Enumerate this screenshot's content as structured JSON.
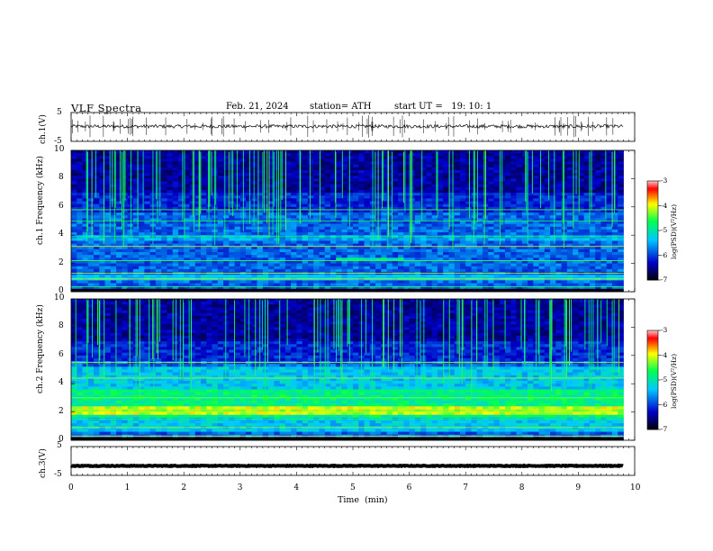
{
  "header": {
    "title": "VLF Spectra",
    "date": "Feb. 21, 2024",
    "station": "station= ATH",
    "start": "start UT =   19: 10: 1"
  },
  "colors": {
    "spectro_low": "#000000",
    "spectro_mid_low": "#0000c8",
    "spectro_mid": "#00c8ff",
    "spectro_mid_high": "#00ff50",
    "spectro_high": "#ffff00",
    "spectro_peak": "#ff0000"
  },
  "chart_data": [
    {
      "type": "line",
      "name": "ch1-waveform",
      "ylabel": "ch.1(V)",
      "yticks": [
        "5",
        "-5"
      ],
      "ylim": [
        -5,
        5
      ],
      "x_range_min": [
        0,
        9.8
      ],
      "y_approx_level": 0.2
    },
    {
      "type": "heatmap",
      "name": "ch1-spectrogram",
      "ylabel": "ch.1  Frequency (kHz)",
      "yticks": [
        "10",
        "8",
        "6",
        "4",
        "2",
        "0"
      ],
      "ylim": [
        0,
        10
      ],
      "x_range_min": [
        0,
        9.8
      ],
      "colorbar": {
        "label": "log(PSD)(V²/Hz)",
        "ticks": [
          "-3",
          "-4",
          "-5",
          "-6",
          "-7"
        ],
        "range": [
          -7,
          -3
        ]
      }
    },
    {
      "type": "heatmap",
      "name": "ch2-spectrogram",
      "ylabel": "ch.2  Frequency (kHz)",
      "yticks": [
        "10",
        "8",
        "6",
        "4",
        "2",
        "0"
      ],
      "ylim": [
        0,
        10
      ],
      "x_range_min": [
        0,
        9.8
      ],
      "colorbar": {
        "label": "log(PSD)(V²/Hz)",
        "ticks": [
          "-3",
          "-4",
          "-5",
          "-6",
          "-7"
        ],
        "range": [
          -7,
          -3
        ]
      }
    },
    {
      "type": "line",
      "name": "ch3-waveform",
      "ylabel": "ch.3(V)",
      "yticks": [
        "5",
        "-5"
      ],
      "ylim": [
        -5,
        5
      ],
      "x_range_min": [
        0,
        9.8
      ],
      "y_approx_level": -1.7
    }
  ],
  "xaxis": {
    "label": "Time  (min)",
    "ticks": [
      "0",
      "1",
      "2",
      "3",
      "4",
      "5",
      "6",
      "7",
      "8",
      "9",
      "10"
    ],
    "range": [
      0,
      10
    ]
  }
}
